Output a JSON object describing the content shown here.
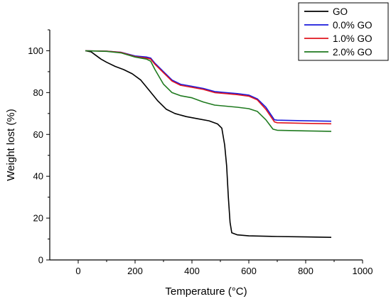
{
  "chart_data": {
    "type": "line",
    "title": "",
    "xlabel": "Temperature (°C)",
    "ylabel": "Weight lost (%)",
    "xlim": [
      -100,
      1000
    ],
    "ylim": [
      0,
      110
    ],
    "xticks": [
      0,
      200,
      400,
      600,
      800,
      1000
    ],
    "yticks": [
      0,
      20,
      40,
      60,
      80,
      100
    ],
    "grid": false,
    "legend_position": "top-right",
    "series": [
      {
        "name": "GO",
        "color": "#000000",
        "points": [
          [
            25,
            100
          ],
          [
            45,
            99.5
          ],
          [
            60,
            98
          ],
          [
            80,
            96
          ],
          [
            100,
            94.5
          ],
          [
            130,
            92.5
          ],
          [
            160,
            91
          ],
          [
            190,
            89
          ],
          [
            220,
            86
          ],
          [
            250,
            81
          ],
          [
            280,
            76
          ],
          [
            310,
            72
          ],
          [
            340,
            70
          ],
          [
            380,
            68.5
          ],
          [
            420,
            67.5
          ],
          [
            460,
            66.5
          ],
          [
            490,
            65
          ],
          [
            505,
            63
          ],
          [
            515,
            55
          ],
          [
            522,
            45
          ],
          [
            528,
            30
          ],
          [
            534,
            18
          ],
          [
            540,
            13
          ],
          [
            560,
            12
          ],
          [
            600,
            11.5
          ],
          [
            700,
            11.2
          ],
          [
            800,
            11
          ],
          [
            890,
            10.8
          ]
        ]
      },
      {
        "name": "0.0% GO",
        "color": "#1a1adc",
        "points": [
          [
            25,
            100
          ],
          [
            100,
            99.8
          ],
          [
            150,
            99.3
          ],
          [
            200,
            97.5
          ],
          [
            240,
            97
          ],
          [
            255,
            96.5
          ],
          [
            270,
            94
          ],
          [
            300,
            90
          ],
          [
            330,
            86
          ],
          [
            360,
            84
          ],
          [
            400,
            83
          ],
          [
            440,
            82
          ],
          [
            480,
            80.5
          ],
          [
            520,
            80
          ],
          [
            560,
            79.5
          ],
          [
            600,
            78.8
          ],
          [
            630,
            77
          ],
          [
            660,
            73
          ],
          [
            690,
            67
          ],
          [
            700,
            66.8
          ],
          [
            800,
            66.5
          ],
          [
            890,
            66.3
          ]
        ]
      },
      {
        "name": "1.0% GO",
        "color": "#e0141e",
        "points": [
          [
            25,
            100
          ],
          [
            100,
            99.8
          ],
          [
            150,
            99.2
          ],
          [
            200,
            97.2
          ],
          [
            240,
            96.5
          ],
          [
            255,
            96
          ],
          [
            270,
            93.5
          ],
          [
            300,
            89.5
          ],
          [
            330,
            85.5
          ],
          [
            360,
            83.5
          ],
          [
            400,
            82.5
          ],
          [
            440,
            81.5
          ],
          [
            480,
            80
          ],
          [
            520,
            79.5
          ],
          [
            560,
            79
          ],
          [
            600,
            78.3
          ],
          [
            630,
            76.5
          ],
          [
            660,
            72
          ],
          [
            690,
            66
          ],
          [
            700,
            65.6
          ],
          [
            800,
            65.3
          ],
          [
            890,
            65.1
          ]
        ]
      },
      {
        "name": "2.0% GO",
        "color": "#1f7a1f",
        "points": [
          [
            25,
            100
          ],
          [
            100,
            99.7
          ],
          [
            150,
            99
          ],
          [
            200,
            97
          ],
          [
            240,
            96
          ],
          [
            255,
            95
          ],
          [
            270,
            91
          ],
          [
            300,
            84
          ],
          [
            330,
            80
          ],
          [
            360,
            78.5
          ],
          [
            400,
            77.5
          ],
          [
            440,
            75.5
          ],
          [
            480,
            74
          ],
          [
            520,
            73.5
          ],
          [
            560,
            73
          ],
          [
            600,
            72.3
          ],
          [
            630,
            71
          ],
          [
            660,
            67
          ],
          [
            685,
            62.5
          ],
          [
            700,
            62
          ],
          [
            800,
            61.7
          ],
          [
            890,
            61.5
          ]
        ]
      }
    ]
  }
}
